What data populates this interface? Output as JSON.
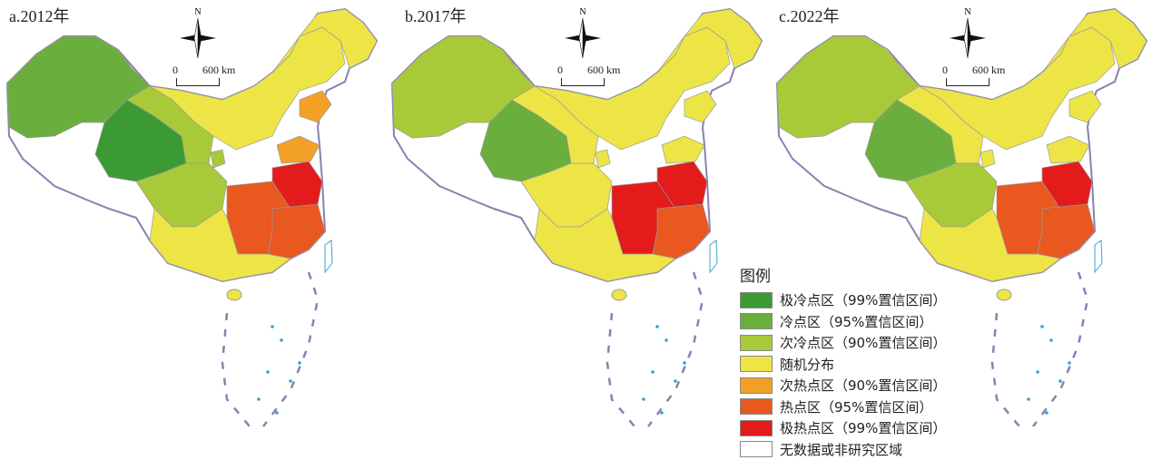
{
  "panels": [
    {
      "title": "a.2012年",
      "north": "N",
      "scale_zero": "0",
      "scale_max": "600 km",
      "regions": {
        "west_big": "cold95",
        "tibet": "cold99",
        "mid_west": "sub90",
        "sichuan": "sub90",
        "small_west": "sub90",
        "north_band": "random",
        "northeast": "random",
        "south": "random",
        "liaoning": "subhot90",
        "shandong": "subhot90",
        "jiangsu_anhui": "hot99",
        "hubei_hunan": "hot95",
        "jiangxi_zhejiang": "hot95"
      }
    },
    {
      "title": "b.2017年",
      "north": "N",
      "scale_zero": "0",
      "scale_max": "600 km",
      "regions": {
        "west_big": "sub90",
        "tibet": "cold95",
        "mid_west": "random",
        "sichuan": "random",
        "small_west": "random",
        "north_band": "random",
        "northeast": "random",
        "south": "random",
        "liaoning": "random",
        "shandong": "random",
        "jiangsu_anhui": "hot99",
        "hubei_hunan": "hot99",
        "jiangxi_zhejiang": "hot95"
      }
    },
    {
      "title": "c.2022年",
      "north": "N",
      "scale_zero": "0",
      "scale_max": "600 km",
      "regions": {
        "west_big": "sub90",
        "tibet": "cold95",
        "mid_west": "random",
        "sichuan": "sub90",
        "small_west": "random",
        "north_band": "random",
        "northeast": "random",
        "south": "random",
        "liaoning": "random",
        "shandong": "random",
        "jiangsu_anhui": "hot99",
        "hubei_hunan": "hot95",
        "jiangxi_zhejiang": "hot95"
      }
    }
  ],
  "legend": {
    "title": "图例",
    "items": [
      {
        "key": "cold99",
        "label": "极冷点区（99%置信区间）",
        "color": "#3c9a35"
      },
      {
        "key": "cold95",
        "label": "冷点区（95%置信区间）",
        "color": "#6aaf3d"
      },
      {
        "key": "sub90",
        "label": "次冷点区（90%置信区间）",
        "color": "#a9ca38"
      },
      {
        "key": "random",
        "label": "随机分布",
        "color": "#ede545"
      },
      {
        "key": "subhot90",
        "label": "次热点区（90%置信区间）",
        "color": "#f3a126"
      },
      {
        "key": "hot95",
        "label": "热点区（95%置信区间）",
        "color": "#e8581f"
      },
      {
        "key": "hot99",
        "label": "极热点区（99%置信区间）",
        "color": "#e31b1b"
      },
      {
        "key": "nodata",
        "label": "无数据或非研究区域",
        "color": "#ffffff"
      }
    ]
  }
}
